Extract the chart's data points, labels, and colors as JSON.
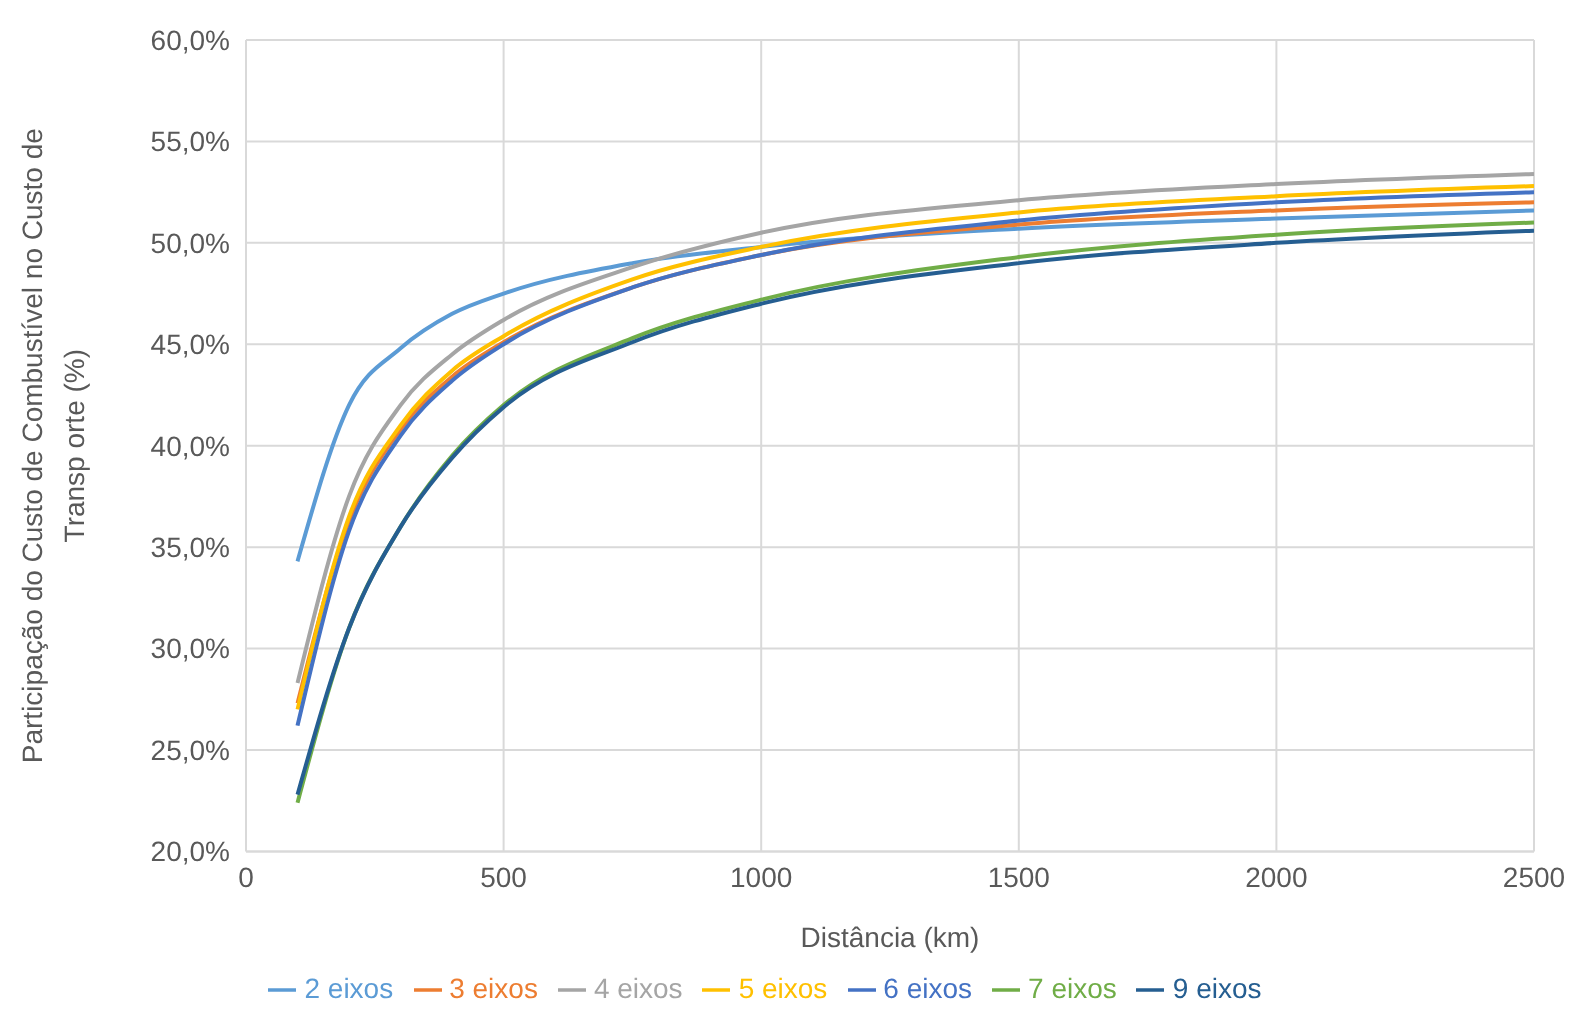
{
  "chart_data": {
    "type": "line",
    "xlabel": "Distância (km)",
    "ylabel": "Participação do Custo de Combustível no Custo de\nTransp orte (%)",
    "x": [
      100,
      200,
      300,
      400,
      500,
      750,
      1000,
      1500,
      2000,
      2500
    ],
    "xlim": [
      0,
      2500
    ],
    "xticks": [
      0,
      500,
      1000,
      1500,
      2000,
      2500
    ],
    "ylim": [
      20,
      60
    ],
    "yticks": [
      {
        "value": 20,
        "label": "20,0%"
      },
      {
        "value": 25,
        "label": "25,0%"
      },
      {
        "value": 30,
        "label": "30,0%"
      },
      {
        "value": 35,
        "label": "35,0%"
      },
      {
        "value": 40,
        "label": "40,0%"
      },
      {
        "value": 45,
        "label": "45,0%"
      },
      {
        "value": 50,
        "label": "50,0%"
      },
      {
        "value": 55,
        "label": "55,0%"
      },
      {
        "value": 60,
        "label": "60,0%"
      }
    ],
    "grid": true,
    "legend": "bottom",
    "marker": "none",
    "line_style": "solid",
    "series": [
      {
        "name": "2 eixos",
        "color": "#5b9bd5",
        "values": [
          34.3,
          42.0,
          44.8,
          46.5,
          47.5,
          49.0,
          49.8,
          50.7,
          51.2,
          51.6
        ]
      },
      {
        "name": "3 eixos",
        "color": "#ed7d31",
        "values": [
          27.3,
          36.3,
          40.8,
          43.4,
          45.1,
          47.8,
          49.4,
          50.9,
          51.6,
          52.0
        ]
      },
      {
        "name": "4 eixos",
        "color": "#a5a5a5",
        "values": [
          28.3,
          37.5,
          42.0,
          44.5,
          46.2,
          48.8,
          50.5,
          52.1,
          52.9,
          53.4
        ]
      },
      {
        "name": "5 eixos",
        "color": "#ffc000",
        "values": [
          27.0,
          36.5,
          41.0,
          43.7,
          45.4,
          48.2,
          49.8,
          51.5,
          52.3,
          52.8
        ]
      },
      {
        "name": "6 eixos",
        "color": "#4472c4",
        "values": [
          26.2,
          35.8,
          40.5,
          43.2,
          45.0,
          47.8,
          49.4,
          51.1,
          52.0,
          52.5
        ]
      },
      {
        "name": "7 eixos",
        "color": "#70ad47",
        "values": [
          22.4,
          31.0,
          36.0,
          39.5,
          42.0,
          45.3,
          47.2,
          49.3,
          50.4,
          51.0
        ]
      },
      {
        "name": "9 eixos",
        "color": "#255e91",
        "values": [
          22.8,
          31.0,
          36.0,
          39.4,
          41.9,
          45.1,
          47.0,
          49.0,
          50.0,
          50.6
        ]
      }
    ]
  }
}
